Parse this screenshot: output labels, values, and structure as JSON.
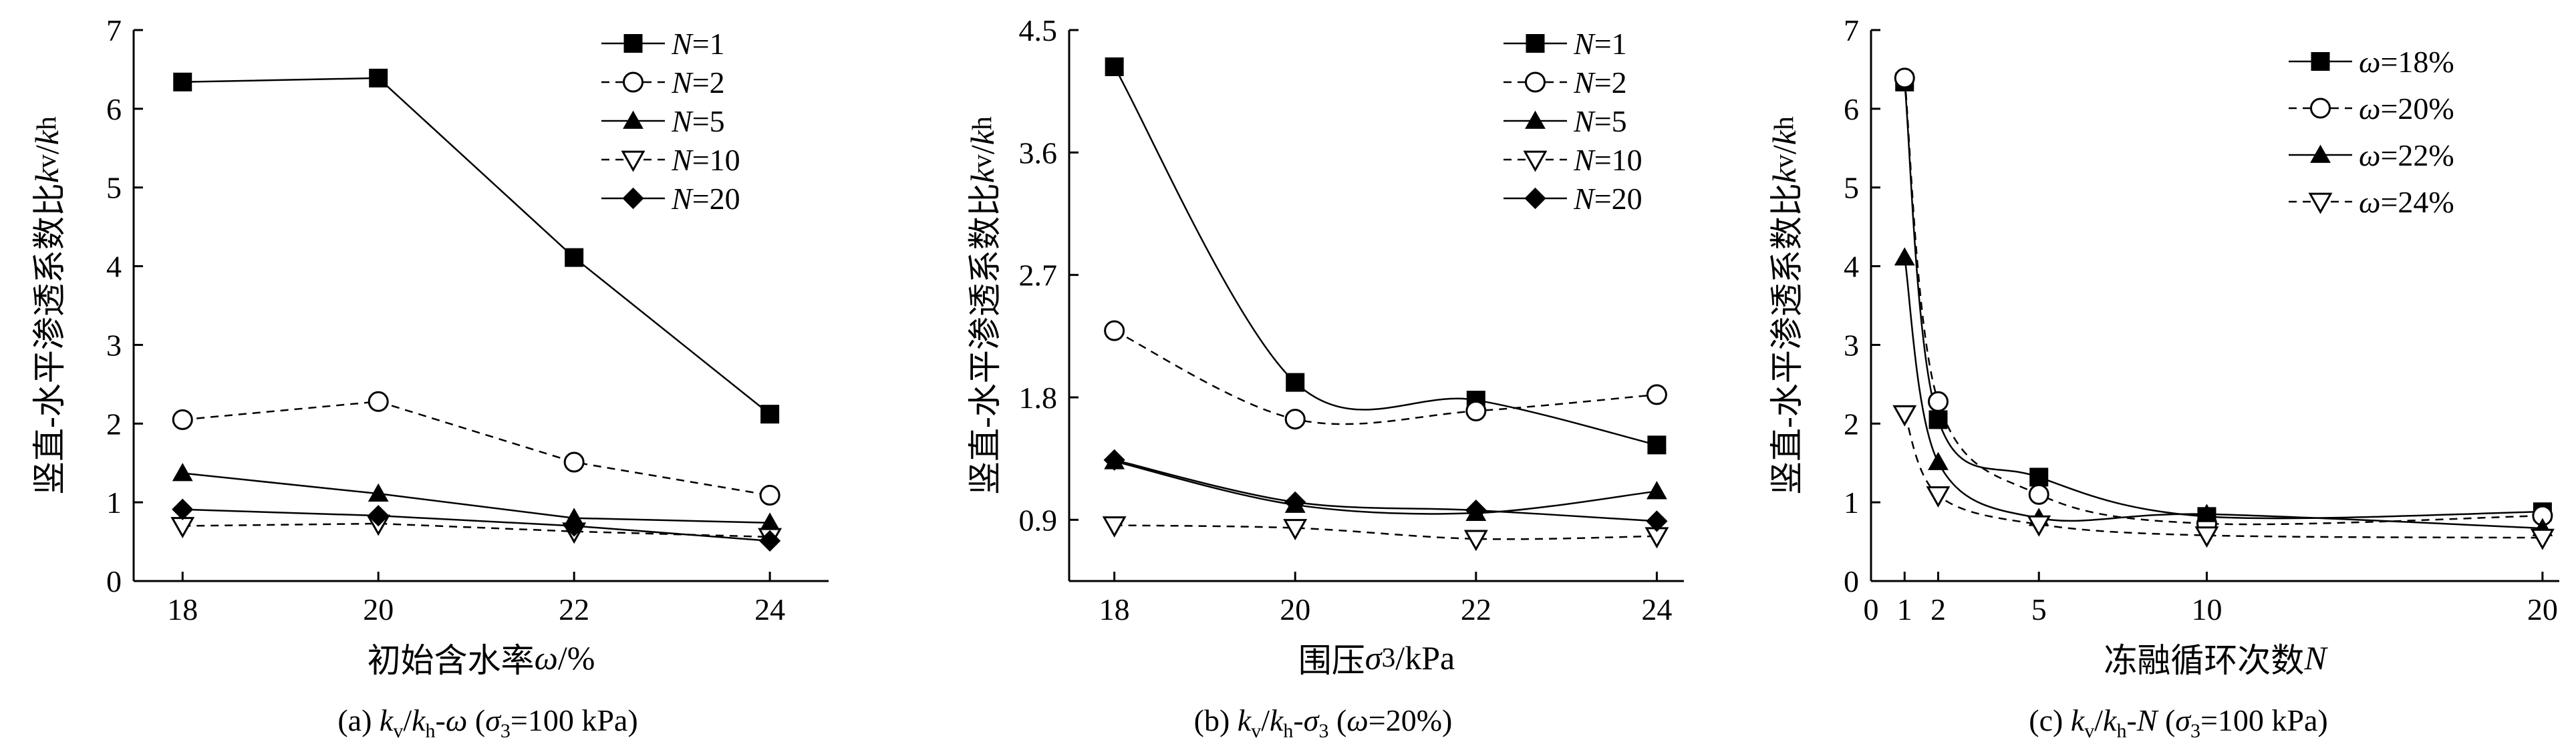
{
  "ylabel_html": "竖直-水平渗透系数比<i>k</i><sub>v</sub>/<i>k</i><sub>h</sub>",
  "captions_html": [
    "(a) <i>k</i><sub>v</sub>/<i>k</i><sub>h</sub>-<i>ω</i> (<i>σ</i><sub>3</sub>=100 kPa)",
    "(b) <i>k</i><sub>v</sub>/<i>k</i><sub>h</sub>-<i>σ</i><sub>3</sub> (<i>ω</i>=20%)",
    "(c) <i>k</i><sub>v</sub>/<i>k</i><sub>h</sub>-<i>N</i> (<i>σ</i><sub>3</sub>=100 kPa)"
  ],
  "chart_data": [
    {
      "type": "line",
      "title": "",
      "xlabel": "初始含水率ω/%",
      "xlabel_html": "初始含水率<i>ω</i>/%",
      "ylabel": "竖直-水平渗透系数比kv/kh",
      "xlim": [
        17.5,
        24.6
      ],
      "ylim": [
        0,
        7
      ],
      "xticks": [
        18,
        20,
        22,
        24
      ],
      "yticks": [
        0,
        1,
        2,
        3,
        4,
        5,
        6,
        7
      ],
      "x": [
        18,
        20,
        22,
        24
      ],
      "grid": false,
      "legend_position": "top-right",
      "series": [
        {
          "name": "N=1",
          "legend_html": "<i>N</i>=1",
          "marker": "square",
          "dash": false,
          "values": [
            6.34,
            6.39,
            4.11,
            2.12
          ]
        },
        {
          "name": "N=2",
          "legend_html": "<i>N</i>=2",
          "marker": "circle",
          "dash": true,
          "values": [
            2.05,
            2.28,
            1.51,
            1.09
          ]
        },
        {
          "name": "N=5",
          "legend_html": "<i>N</i>=5",
          "marker": "triangle",
          "dash": false,
          "values": [
            1.37,
            1.11,
            0.8,
            0.74
          ]
        },
        {
          "name": "N=10",
          "legend_html": "<i>N</i>=10",
          "marker": "triangle-down",
          "dash": true,
          "values": [
            0.7,
            0.73,
            0.63,
            0.56
          ]
        },
        {
          "name": "N=20",
          "legend_html": "<i>N</i>=20",
          "marker": "diamond",
          "dash": false,
          "values": [
            0.91,
            0.83,
            0.7,
            0.51
          ]
        }
      ]
    },
    {
      "type": "line",
      "title": "",
      "xlabel": "围压σ3/kPa",
      "xlabel_html": "围压<i>σ</i><sub>3</sub>/kPa",
      "ylabel": "竖直-水平渗透系数比kv/kh",
      "xlim": [
        17.5,
        24.3
      ],
      "ylim": [
        0.45,
        4.5
      ],
      "xticks": [
        18,
        20,
        22,
        24
      ],
      "yticks": [
        0.9,
        1.8,
        2.7,
        3.6,
        4.5
      ],
      "ytick_labels": [
        "0.9",
        "1.8",
        "2.7",
        "3.6",
        "4.5"
      ],
      "x_tick_labels": [
        "18",
        "20",
        "22",
        "24"
      ],
      "x": [
        18,
        20,
        22,
        24
      ],
      "grid": false,
      "legend_position": "top-right",
      "series": [
        {
          "name": "N=1",
          "legend_html": "<i>N</i>=1",
          "marker": "square",
          "dash": false,
          "values": [
            4.23,
            1.91,
            1.78,
            1.45
          ]
        },
        {
          "name": "N=2",
          "legend_html": "<i>N</i>=2",
          "marker": "circle",
          "dash": true,
          "values": [
            2.29,
            1.64,
            1.7,
            1.82
          ]
        },
        {
          "name": "N=5",
          "legend_html": "<i>N</i>=5",
          "marker": "triangle",
          "dash": false,
          "values": [
            1.33,
            1.01,
            0.95,
            1.11
          ]
        },
        {
          "name": "N=10",
          "legend_html": "<i>N</i>=10",
          "marker": "triangle-down",
          "dash": true,
          "values": [
            0.86,
            0.84,
            0.76,
            0.78
          ]
        },
        {
          "name": "N=20",
          "legend_html": "<i>N</i>=20",
          "marker": "diamond",
          "dash": false,
          "values": [
            1.34,
            1.03,
            0.97,
            0.89
          ]
        }
      ]
    },
    {
      "type": "line",
      "title": "",
      "xlabel": "冻融循环次数N",
      "xlabel_html": "冻融循环次数<i>N</i>",
      "ylabel": "竖直-水平渗透系数比kv/kh",
      "xlim": [
        0,
        20.5
      ],
      "ylim": [
        0,
        7
      ],
      "xticks": [
        0,
        1,
        2,
        5,
        10,
        20
      ],
      "yticks": [
        0,
        1,
        2,
        3,
        4,
        5,
        6,
        7
      ],
      "x": [
        1,
        2,
        5,
        10,
        20
      ],
      "grid": false,
      "legend_position": "top-right",
      "series": [
        {
          "name": "ω=18%",
          "legend_html": "<i>ω</i>=18%",
          "marker": "square",
          "dash": false,
          "values": [
            6.34,
            2.05,
            1.32,
            0.82,
            0.88
          ]
        },
        {
          "name": "ω=20%",
          "legend_html": "<i>ω</i>=20%",
          "marker": "circle",
          "dash": true,
          "values": [
            6.39,
            2.28,
            1.1,
            0.73,
            0.83
          ]
        },
        {
          "name": "ω=22%",
          "legend_html": "<i>ω</i>=22%",
          "marker": "triangle",
          "dash": false,
          "values": [
            4.11,
            1.51,
            0.8,
            0.85,
            0.67
          ]
        },
        {
          "name": "ω=24%",
          "legend_html": "<i>ω</i>=24%",
          "marker": "triangle-down",
          "dash": true,
          "values": [
            2.12,
            1.09,
            0.72,
            0.58,
            0.55
          ]
        }
      ]
    }
  ]
}
